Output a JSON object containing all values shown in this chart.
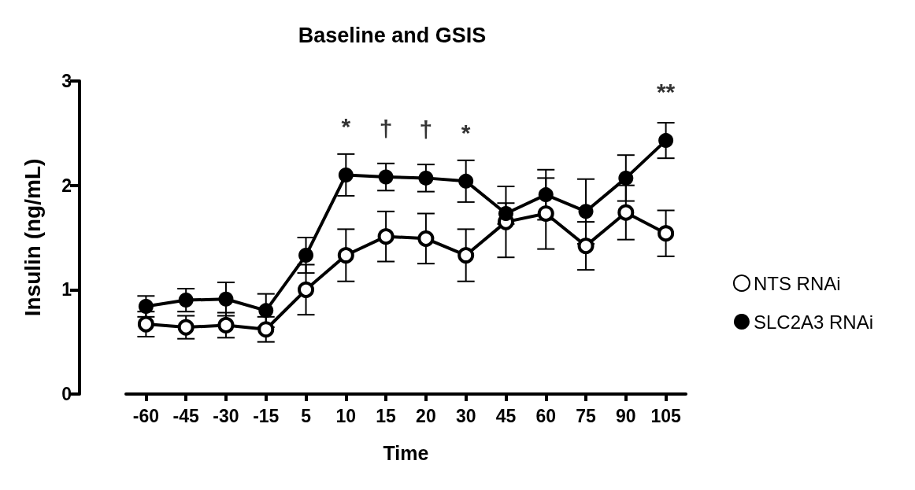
{
  "chart_data": {
    "type": "line",
    "title": "Baseline and GSIS",
    "xlabel": "Time",
    "ylabel": "Insulin (ng/mL)",
    "categories": [
      "-60",
      "-45",
      "-30",
      "-15",
      "5",
      "10",
      "15",
      "20",
      "30",
      "45",
      "60",
      "75",
      "90",
      "105"
    ],
    "ylim": [
      0,
      3
    ],
    "yticks": [
      0,
      1,
      2,
      3
    ],
    "grid": false,
    "legend": "right",
    "series": [
      {
        "name": "NTS RNAi",
        "color": "#000000",
        "marker": "open circle",
        "values": [
          0.67,
          0.64,
          0.66,
          0.62,
          1.0,
          1.33,
          1.51,
          1.49,
          1.33,
          1.65,
          1.73,
          1.42,
          1.74,
          1.54
        ],
        "errors": [
          0.12,
          0.11,
          0.12,
          0.12,
          0.24,
          0.25,
          0.24,
          0.24,
          0.25,
          0.34,
          0.34,
          0.23,
          0.26,
          0.22
        ]
      },
      {
        "name": "SLC2A3 RNAi",
        "color": "#000000",
        "marker": "circle",
        "values": [
          0.84,
          0.9,
          0.91,
          0.8,
          1.33,
          2.1,
          2.08,
          2.07,
          2.04,
          1.73,
          1.91,
          1.75,
          2.07,
          2.43
        ],
        "errors": [
          0.1,
          0.11,
          0.16,
          0.16,
          0.17,
          0.2,
          0.13,
          0.13,
          0.2,
          0.1,
          0.24,
          0.31,
          0.22,
          0.17
        ]
      }
    ],
    "annotations": [
      {
        "text": "*",
        "x": "10",
        "y": 2.1
      },
      {
        "text": "†",
        "x": "15",
        "y": 2.08
      },
      {
        "text": "†",
        "x": "20",
        "y": 2.07
      },
      {
        "text": "*",
        "x": "30",
        "y": 2.04
      },
      {
        "text": "**",
        "x": "105",
        "y": 2.43
      }
    ]
  }
}
